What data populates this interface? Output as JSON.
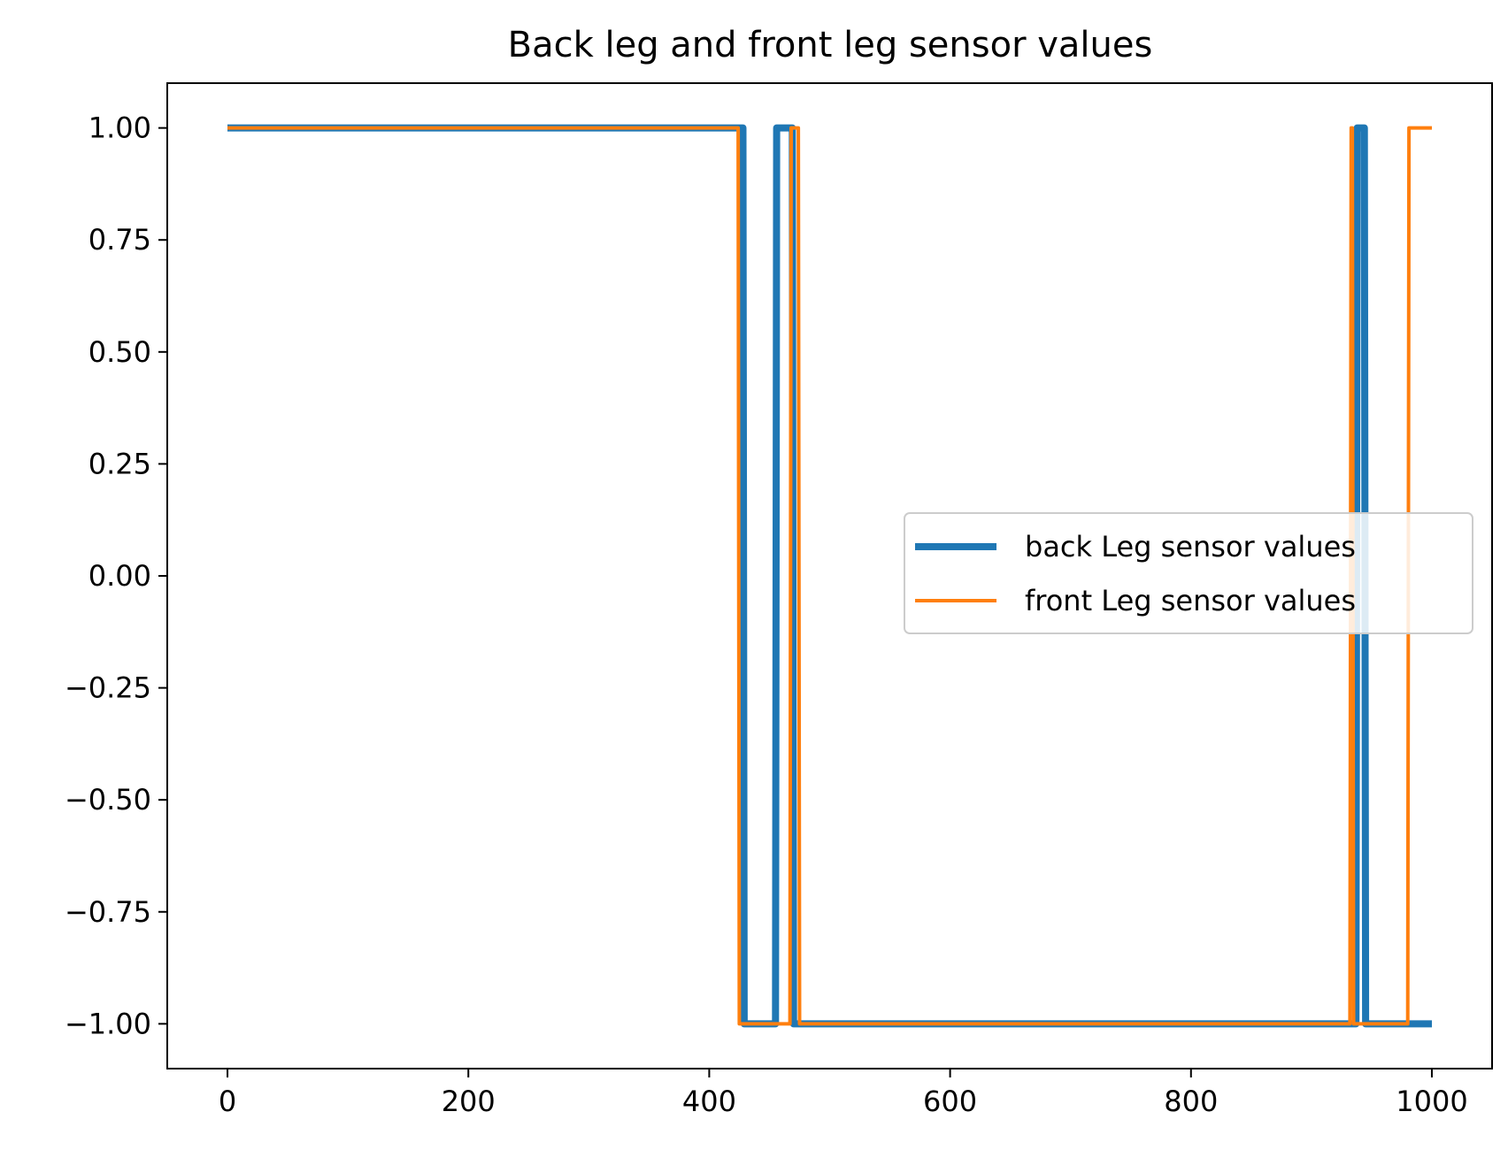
{
  "chart_data": {
    "type": "line",
    "title": "Back leg and front leg sensor values",
    "xlabel": "",
    "ylabel": "",
    "xlim": [
      -50,
      1050
    ],
    "ylim": [
      -1.1,
      1.1
    ],
    "xticks": [
      0,
      200,
      400,
      600,
      800,
      1000
    ],
    "xtick_labels": [
      "0",
      "200",
      "400",
      "600",
      "800",
      "1000"
    ],
    "yticks": [
      1.0,
      0.75,
      0.5,
      0.25,
      0.0,
      -0.25,
      -0.5,
      -0.75,
      -1.0
    ],
    "ytick_labels": [
      "1.00",
      "0.75",
      "0.50",
      "0.25",
      "0.00",
      "−0.25",
      "−0.50",
      "−0.75",
      "−1.00"
    ],
    "grid": false,
    "legend": {
      "placement": "center-right"
    },
    "series": [
      {
        "name": "back Leg sensor values",
        "color": "#1f77b4",
        "style": "thick",
        "x": [
          0,
          428,
          429,
          455,
          456,
          469,
          470,
          937,
          938,
          944,
          945,
          1000
        ],
        "y": [
          1,
          1,
          -1,
          -1,
          1,
          1,
          -1,
          -1,
          1,
          1,
          -1,
          -1
        ]
      },
      {
        "name": "front Leg sensor values",
        "color": "#ff7f0e",
        "style": "thin",
        "x": [
          0,
          424,
          425,
          467,
          468,
          474,
          475,
          932,
          933,
          934,
          935,
          980,
          981,
          1000
        ],
        "y": [
          1,
          1,
          -1,
          -1,
          1,
          1,
          -1,
          -1,
          1,
          1,
          -1,
          -1,
          1,
          1
        ]
      }
    ]
  }
}
